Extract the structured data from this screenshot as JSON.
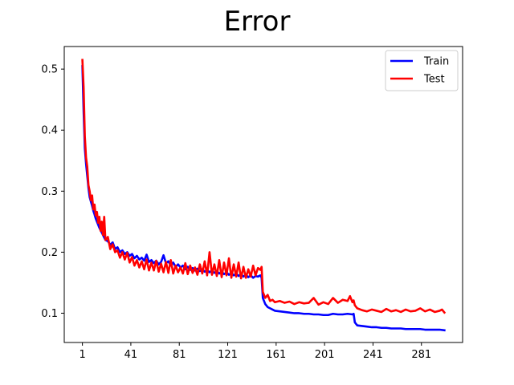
{
  "chart_data": {
    "type": "line",
    "title": "Error",
    "xlabel": "",
    "ylabel": "",
    "xlim": [
      -14,
      315
    ],
    "ylim": [
      0.052,
      0.537
    ],
    "xticks": [
      1,
      41,
      81,
      121,
      161,
      201,
      241,
      281
    ],
    "yticks": [
      0.1,
      0.2,
      0.3,
      0.4,
      0.5
    ],
    "grid": false,
    "legend": {
      "position": "top-right"
    },
    "series": [
      {
        "name": "Train",
        "color": "#0000ff",
        "points": [
          [
            1,
            0.505
          ],
          [
            2,
            0.43
          ],
          [
            3,
            0.37
          ],
          [
            4,
            0.345
          ],
          [
            5,
            0.325
          ],
          [
            6,
            0.305
          ],
          [
            7,
            0.29
          ],
          [
            8,
            0.283
          ],
          [
            9,
            0.276
          ],
          [
            10,
            0.268
          ],
          [
            11,
            0.262
          ],
          [
            12,
            0.255
          ],
          [
            13,
            0.25
          ],
          [
            14,
            0.245
          ],
          [
            15,
            0.24
          ],
          [
            16,
            0.236
          ],
          [
            17,
            0.232
          ],
          [
            18,
            0.228
          ],
          [
            19,
            0.224
          ],
          [
            20,
            0.22
          ],
          [
            22,
            0.218
          ],
          [
            24,
            0.212
          ],
          [
            26,
            0.216
          ],
          [
            28,
            0.205
          ],
          [
            30,
            0.208
          ],
          [
            32,
            0.2
          ],
          [
            34,
            0.203
          ],
          [
            36,
            0.197
          ],
          [
            38,
            0.2
          ],
          [
            40,
            0.194
          ],
          [
            42,
            0.197
          ],
          [
            44,
            0.19
          ],
          [
            46,
            0.194
          ],
          [
            48,
            0.188
          ],
          [
            50,
            0.191
          ],
          [
            52,
            0.186
          ],
          [
            54,
            0.196
          ],
          [
            56,
            0.184
          ],
          [
            58,
            0.187
          ],
          [
            60,
            0.182
          ],
          [
            62,
            0.186
          ],
          [
            64,
            0.18
          ],
          [
            66,
            0.184
          ],
          [
            68,
            0.195
          ],
          [
            70,
            0.182
          ],
          [
            72,
            0.185
          ],
          [
            74,
            0.178
          ],
          [
            76,
            0.183
          ],
          [
            78,
            0.176
          ],
          [
            80,
            0.18
          ],
          [
            82,
            0.175
          ],
          [
            84,
            0.178
          ],
          [
            86,
            0.172
          ],
          [
            88,
            0.176
          ],
          [
            90,
            0.171
          ],
          [
            92,
            0.174
          ],
          [
            94,
            0.17
          ],
          [
            96,
            0.173
          ],
          [
            98,
            0.169
          ],
          [
            100,
            0.172
          ],
          [
            102,
            0.168
          ],
          [
            104,
            0.171
          ],
          [
            106,
            0.167
          ],
          [
            108,
            0.17
          ],
          [
            110,
            0.166
          ],
          [
            112,
            0.169
          ],
          [
            114,
            0.165
          ],
          [
            116,
            0.168
          ],
          [
            118,
            0.164
          ],
          [
            120,
            0.167
          ],
          [
            122,
            0.163
          ],
          [
            124,
            0.166
          ],
          [
            126,
            0.162
          ],
          [
            128,
            0.165
          ],
          [
            130,
            0.161
          ],
          [
            132,
            0.164
          ],
          [
            134,
            0.16
          ],
          [
            136,
            0.163
          ],
          [
            138,
            0.159
          ],
          [
            140,
            0.162
          ],
          [
            142,
            0.158
          ],
          [
            144,
            0.161
          ],
          [
            146,
            0.16
          ],
          [
            148,
            0.162
          ],
          [
            149,
            0.158
          ],
          [
            150,
            0.125
          ],
          [
            152,
            0.115
          ],
          [
            154,
            0.11
          ],
          [
            156,
            0.108
          ],
          [
            158,
            0.106
          ],
          [
            160,
            0.104
          ],
          [
            164,
            0.103
          ],
          [
            168,
            0.102
          ],
          [
            172,
            0.101
          ],
          [
            176,
            0.1
          ],
          [
            180,
            0.1
          ],
          [
            184,
            0.099
          ],
          [
            188,
            0.099
          ],
          [
            192,
            0.098
          ],
          [
            196,
            0.098
          ],
          [
            200,
            0.097
          ],
          [
            204,
            0.097
          ],
          [
            208,
            0.099
          ],
          [
            212,
            0.098
          ],
          [
            216,
            0.098
          ],
          [
            220,
            0.099
          ],
          [
            224,
            0.098
          ],
          [
            225,
            0.099
          ],
          [
            226,
            0.085
          ],
          [
            228,
            0.08
          ],
          [
            232,
            0.079
          ],
          [
            236,
            0.078
          ],
          [
            240,
            0.077
          ],
          [
            244,
            0.077
          ],
          [
            248,
            0.076
          ],
          [
            252,
            0.076
          ],
          [
            256,
            0.075
          ],
          [
            260,
            0.075
          ],
          [
            264,
            0.075
          ],
          [
            268,
            0.074
          ],
          [
            272,
            0.074
          ],
          [
            276,
            0.074
          ],
          [
            280,
            0.074
          ],
          [
            284,
            0.073
          ],
          [
            288,
            0.073
          ],
          [
            292,
            0.073
          ],
          [
            296,
            0.073
          ],
          [
            300,
            0.072
          ]
        ]
      },
      {
        "name": "Test",
        "color": "#ff0000",
        "points": [
          [
            1,
            0.515
          ],
          [
            2,
            0.47
          ],
          [
            3,
            0.39
          ],
          [
            4,
            0.355
          ],
          [
            5,
            0.34
          ],
          [
            6,
            0.31
          ],
          [
            7,
            0.3
          ],
          [
            8,
            0.285
          ],
          [
            9,
            0.293
          ],
          [
            10,
            0.27
          ],
          [
            11,
            0.278
          ],
          [
            12,
            0.26
          ],
          [
            13,
            0.266
          ],
          [
            14,
            0.248
          ],
          [
            15,
            0.258
          ],
          [
            16,
            0.235
          ],
          [
            17,
            0.25
          ],
          [
            18,
            0.228
          ],
          [
            19,
            0.258
          ],
          [
            20,
            0.22
          ],
          [
            22,
            0.225
          ],
          [
            24,
            0.205
          ],
          [
            26,
            0.213
          ],
          [
            28,
            0.2
          ],
          [
            30,
            0.203
          ],
          [
            32,
            0.191
          ],
          [
            34,
            0.2
          ],
          [
            36,
            0.188
          ],
          [
            38,
            0.199
          ],
          [
            40,
            0.183
          ],
          [
            42,
            0.192
          ],
          [
            44,
            0.178
          ],
          [
            46,
            0.187
          ],
          [
            48,
            0.175
          ],
          [
            50,
            0.185
          ],
          [
            52,
            0.172
          ],
          [
            54,
            0.188
          ],
          [
            56,
            0.17
          ],
          [
            58,
            0.183
          ],
          [
            60,
            0.17
          ],
          [
            62,
            0.186
          ],
          [
            64,
            0.168
          ],
          [
            66,
            0.181
          ],
          [
            68,
            0.167
          ],
          [
            70,
            0.184
          ],
          [
            72,
            0.166
          ],
          [
            74,
            0.187
          ],
          [
            76,
            0.165
          ],
          [
            78,
            0.178
          ],
          [
            80,
            0.167
          ],
          [
            82,
            0.175
          ],
          [
            84,
            0.165
          ],
          [
            86,
            0.182
          ],
          [
            88,
            0.164
          ],
          [
            90,
            0.178
          ],
          [
            92,
            0.166
          ],
          [
            94,
            0.175
          ],
          [
            96,
            0.163
          ],
          [
            98,
            0.18
          ],
          [
            100,
            0.165
          ],
          [
            102,
            0.185
          ],
          [
            104,
            0.162
          ],
          [
            106,
            0.2
          ],
          [
            108,
            0.163
          ],
          [
            110,
            0.18
          ],
          [
            112,
            0.161
          ],
          [
            114,
            0.187
          ],
          [
            116,
            0.159
          ],
          [
            118,
            0.183
          ],
          [
            120,
            0.162
          ],
          [
            122,
            0.19
          ],
          [
            124,
            0.158
          ],
          [
            126,
            0.18
          ],
          [
            128,
            0.16
          ],
          [
            130,
            0.183
          ],
          [
            132,
            0.157
          ],
          [
            134,
            0.176
          ],
          [
            136,
            0.158
          ],
          [
            138,
            0.172
          ],
          [
            140,
            0.16
          ],
          [
            142,
            0.178
          ],
          [
            144,
            0.162
          ],
          [
            146,
            0.174
          ],
          [
            148,
            0.171
          ],
          [
            149,
            0.176
          ],
          [
            150,
            0.135
          ],
          [
            152,
            0.125
          ],
          [
            154,
            0.13
          ],
          [
            156,
            0.12
          ],
          [
            158,
            0.122
          ],
          [
            160,
            0.118
          ],
          [
            164,
            0.12
          ],
          [
            168,
            0.117
          ],
          [
            172,
            0.119
          ],
          [
            176,
            0.115
          ],
          [
            180,
            0.118
          ],
          [
            184,
            0.116
          ],
          [
            188,
            0.117
          ],
          [
            192,
            0.125
          ],
          [
            196,
            0.114
          ],
          [
            200,
            0.118
          ],
          [
            204,
            0.115
          ],
          [
            208,
            0.125
          ],
          [
            212,
            0.117
          ],
          [
            216,
            0.122
          ],
          [
            220,
            0.12
          ],
          [
            222,
            0.128
          ],
          [
            224,
            0.118
          ],
          [
            225,
            0.121
          ],
          [
            226,
            0.113
          ],
          [
            228,
            0.108
          ],
          [
            232,
            0.105
          ],
          [
            236,
            0.103
          ],
          [
            240,
            0.106
          ],
          [
            244,
            0.104
          ],
          [
            248,
            0.102
          ],
          [
            252,
            0.107
          ],
          [
            256,
            0.103
          ],
          [
            260,
            0.105
          ],
          [
            264,
            0.102
          ],
          [
            268,
            0.106
          ],
          [
            272,
            0.103
          ],
          [
            276,
            0.104
          ],
          [
            280,
            0.108
          ],
          [
            284,
            0.103
          ],
          [
            288,
            0.106
          ],
          [
            292,
            0.102
          ],
          [
            296,
            0.104
          ],
          [
            298,
            0.106
          ],
          [
            300,
            0.101
          ]
        ]
      }
    ]
  }
}
